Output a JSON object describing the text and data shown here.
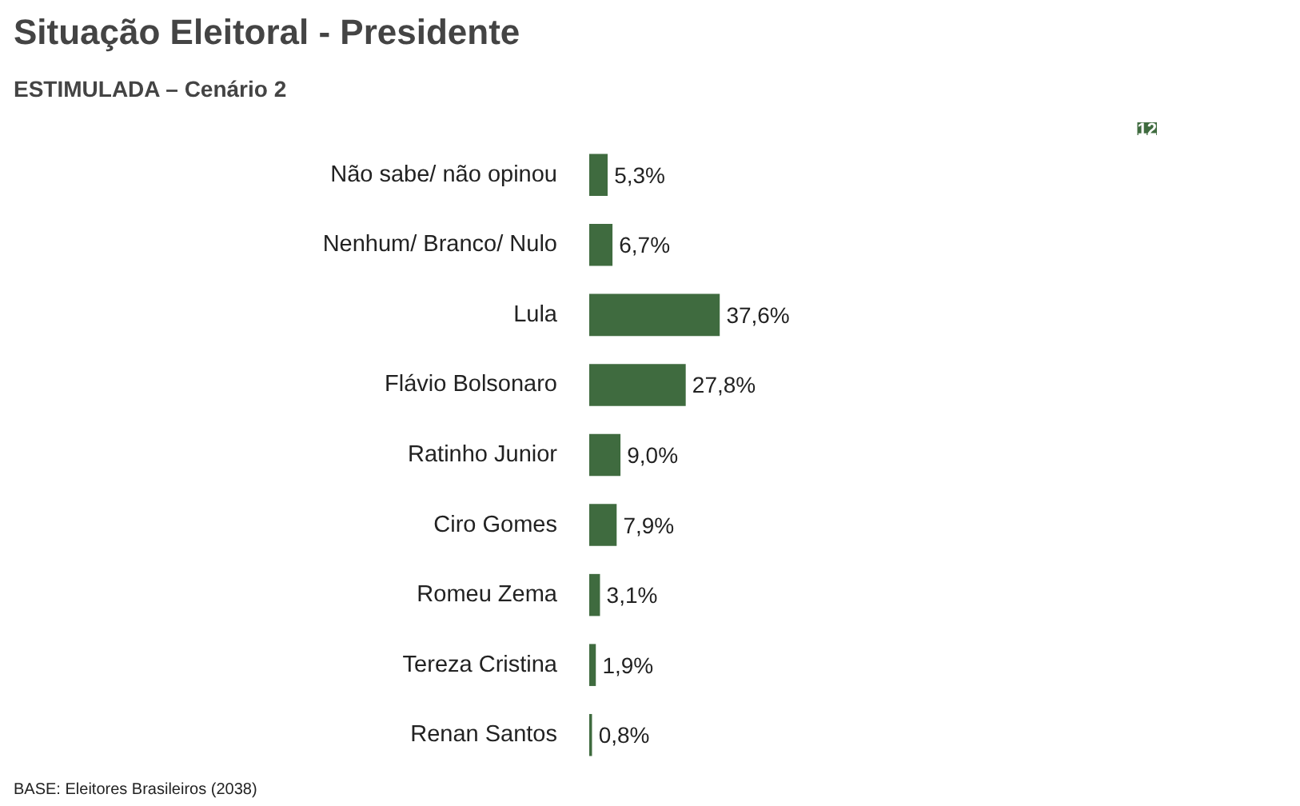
{
  "chart_data": {
    "type": "bar",
    "orientation": "horizontal",
    "title": "Situação Eleitoral - Presidente",
    "subtitle": "ESTIMULADA – Cenário 2",
    "categories": [
      "Não sabe/ não opinou",
      "Nenhum/ Branco/ Nulo",
      "Lula",
      "Flávio Bolsonaro",
      "Ratinho Junior",
      "Ciro Gomes",
      "Romeu Zema",
      "Tereza Cristina",
      "Renan Santos"
    ],
    "values": [
      5.3,
      6.7,
      37.6,
      27.8,
      9.0,
      7.9,
      3.1,
      1.9,
      0.8
    ],
    "value_labels": [
      "5,3%",
      "6,7%",
      "37,6%",
      "27,8%",
      "9,0%",
      "7,9%",
      "3,1%",
      "1,9%",
      "0,8%"
    ],
    "color": "#3f6b3f",
    "annotations": [
      "12",
      "BASE: Eleitores Brasileiros (2038)"
    ],
    "grid": false
  }
}
